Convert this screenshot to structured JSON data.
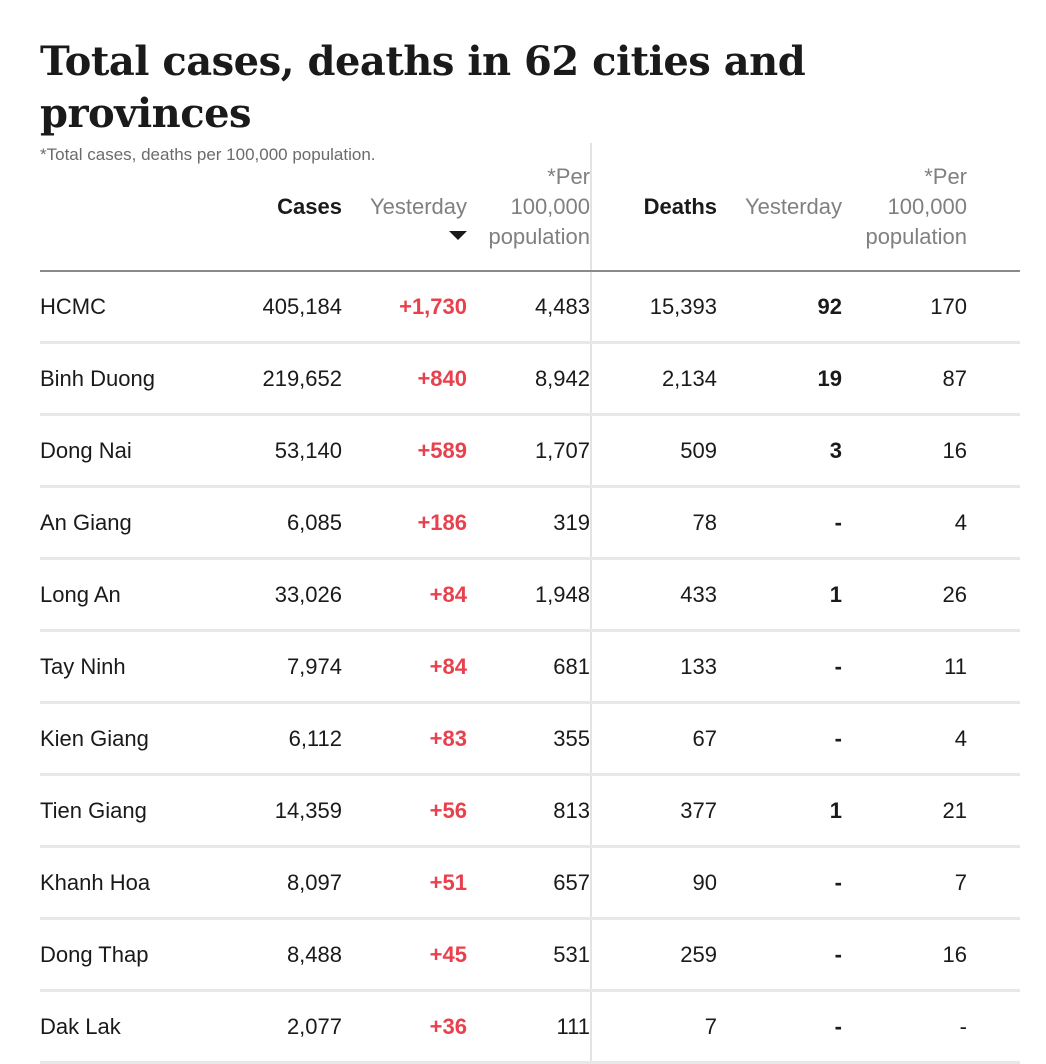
{
  "title": "Total cases, deaths in 62 cities and provinces",
  "subtitle": "*Total cases, deaths per 100,000 population.",
  "headers": {
    "cases": "Cases",
    "yesterday": "Yesterday",
    "per_line1": "*Per",
    "per_line2": "100,000",
    "per_line3": "population",
    "deaths": "Deaths",
    "deaths_yesterday": "Yesterday",
    "dper_line1": "*Per",
    "dper_line2": "100,000",
    "dper_line3": "population"
  },
  "sort_icon": "triangle-down-icon",
  "colors": {
    "increase": "#e8414d",
    "title": "#1a1a1a",
    "muted": "#808080"
  },
  "rows": [
    {
      "name": "HCMC",
      "cases": "405,184",
      "yesterday": "+1,730",
      "per100k": "4,483",
      "deaths": "15,393",
      "deaths_yesterday": "92",
      "deaths_per100k": "170"
    },
    {
      "name": "Binh Duong",
      "cases": "219,652",
      "yesterday": "+840",
      "per100k": "8,942",
      "deaths": "2,134",
      "deaths_yesterday": "19",
      "deaths_per100k": "87"
    },
    {
      "name": "Dong Nai",
      "cases": "53,140",
      "yesterday": "+589",
      "per100k": "1,707",
      "deaths": "509",
      "deaths_yesterday": "3",
      "deaths_per100k": "16"
    },
    {
      "name": "An Giang",
      "cases": "6,085",
      "yesterday": "+186",
      "per100k": "319",
      "deaths": "78",
      "deaths_yesterday": "-",
      "deaths_per100k": "4"
    },
    {
      "name": "Long An",
      "cases": "33,026",
      "yesterday": "+84",
      "per100k": "1,948",
      "deaths": "433",
      "deaths_yesterday": "1",
      "deaths_per100k": "26"
    },
    {
      "name": "Tay Ninh",
      "cases": "7,974",
      "yesterday": "+84",
      "per100k": "681",
      "deaths": "133",
      "deaths_yesterday": "-",
      "deaths_per100k": "11"
    },
    {
      "name": "Kien Giang",
      "cases": "6,112",
      "yesterday": "+83",
      "per100k": "355",
      "deaths": "67",
      "deaths_yesterday": "-",
      "deaths_per100k": "4"
    },
    {
      "name": "Tien Giang",
      "cases": "14,359",
      "yesterday": "+56",
      "per100k": "813",
      "deaths": "377",
      "deaths_yesterday": "1",
      "deaths_per100k": "21"
    },
    {
      "name": "Khanh Hoa",
      "cases": "8,097",
      "yesterday": "+51",
      "per100k": "657",
      "deaths": "90",
      "deaths_yesterday": "-",
      "deaths_per100k": "7"
    },
    {
      "name": "Dong Thap",
      "cases": "8,488",
      "yesterday": "+45",
      "per100k": "531",
      "deaths": "259",
      "deaths_yesterday": "-",
      "deaths_per100k": "16"
    },
    {
      "name": "Dak Lak",
      "cases": "2,077",
      "yesterday": "+36",
      "per100k": "111",
      "deaths": "7",
      "deaths_yesterday": "-",
      "deaths_per100k": "-"
    }
  ]
}
